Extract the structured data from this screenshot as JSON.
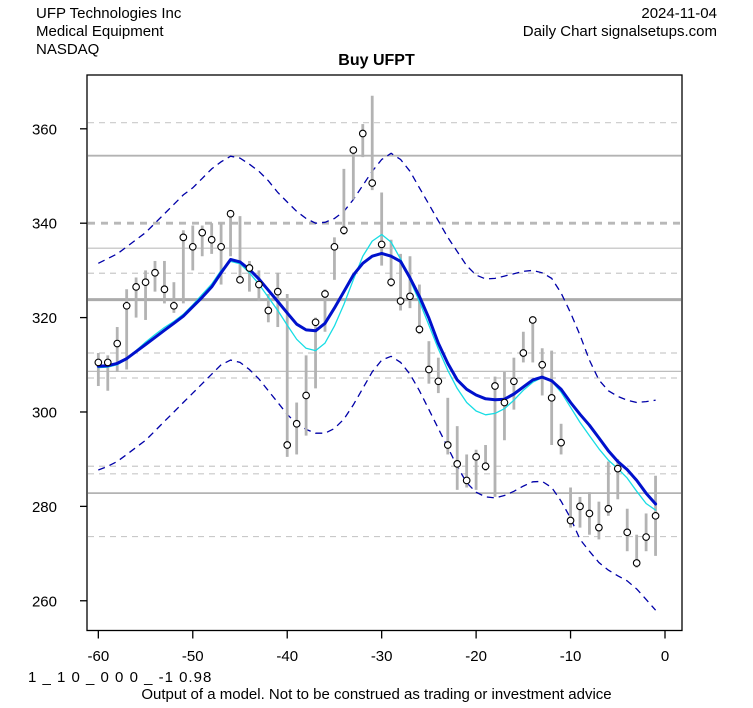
{
  "header": {
    "company": "UFP Technologies Inc",
    "industry": "Medical Equipment",
    "exchange": "NASDAQ",
    "date": "2024-11-04",
    "source": "Daily Chart signalsetups.com",
    "title": "Buy UFPT"
  },
  "footer": {
    "model_code": "1 _ 1 0 _ 0 0 0 _ -1 0.98",
    "disclaimer": "Output of a model. Not to be construed as trading or investment advice"
  },
  "chart_data": {
    "type": "bar",
    "subtype": "daily high-low price bars with open-circle close markers, two moving averages and dashed volatility bands",
    "title": "Buy UFPT",
    "xlabel": "",
    "ylabel": "",
    "x_ticks": [
      -60,
      -50,
      -40,
      -30,
      -20,
      -10,
      0
    ],
    "y_ticks": [
      260,
      280,
      300,
      320,
      340,
      360
    ],
    "xlim": [
      -61.2,
      1.8
    ],
    "ylim": [
      253.7,
      371.4
    ],
    "grid": "horizontal support/resistance lines only",
    "legend": "none",
    "days": [
      -60,
      -59,
      -58,
      -57,
      -56,
      -55,
      -54,
      -53,
      -52,
      -51,
      -50,
      -49,
      -48,
      -47,
      -46,
      -45,
      -44,
      -43,
      -42,
      -41,
      -40,
      -39,
      -38,
      -37,
      -36,
      -35,
      -34,
      -33,
      -32,
      -31,
      -30,
      -29,
      -28,
      -27,
      -26,
      -25,
      -24,
      -23,
      -22,
      -21,
      -20,
      -19,
      -18,
      -17,
      -16,
      -15,
      -14,
      -13,
      -12,
      -11,
      -10,
      -9,
      -8,
      -7,
      -6,
      -5,
      -4,
      -3,
      -2,
      -1
    ],
    "bars_low_high_close": [
      [
        305.5,
        312.5,
        310.5
      ],
      [
        304.5,
        312.0,
        310.5
      ],
      [
        308.5,
        318.0,
        314.5
      ],
      [
        309.0,
        326.0,
        322.5
      ],
      [
        320.0,
        328.5,
        326.5
      ],
      [
        319.5,
        330.0,
        327.5
      ],
      [
        325.5,
        332.0,
        329.5
      ],
      [
        323.0,
        332.0,
        326.0
      ],
      [
        321.0,
        327.5,
        322.5
      ],
      [
        323.0,
        338.5,
        337.0
      ],
      [
        330.0,
        339.5,
        335.0
      ],
      [
        333.0,
        339.5,
        338.0
      ],
      [
        333.5,
        340.0,
        336.5
      ],
      [
        327.0,
        340.0,
        335.0
      ],
      [
        333.0,
        342.5,
        342.0
      ],
      [
        328.0,
        341.5,
        328.0
      ],
      [
        325.5,
        332.0,
        330.5
      ],
      [
        323.5,
        330.0,
        327.0
      ],
      [
        319.0,
        325.0,
        321.5
      ],
      [
        318.0,
        329.5,
        325.5
      ],
      [
        290.5,
        325.0,
        293.0
      ],
      [
        291.0,
        302.0,
        297.5
      ],
      [
        295.0,
        312.0,
        303.5
      ],
      [
        305.0,
        320.0,
        319.0
      ],
      [
        317.0,
        326.0,
        325.0
      ],
      [
        328.0,
        337.0,
        335.0
      ],
      [
        337.5,
        351.5,
        338.5
      ],
      [
        345.0,
        356.0,
        355.5
      ],
      [
        354.0,
        361.0,
        359.0
      ],
      [
        347.0,
        367.0,
        348.5
      ],
      [
        331.0,
        346.5,
        335.5
      ],
      [
        326.5,
        336.5,
        327.5
      ],
      [
        321.5,
        333.5,
        323.5
      ],
      [
        322.0,
        333.0,
        324.5
      ],
      [
        316.5,
        327.0,
        317.5
      ],
      [
        306.0,
        315.0,
        309.0
      ],
      [
        304.0,
        311.5,
        306.5
      ],
      [
        291.0,
        303.0,
        293.0
      ],
      [
        283.5,
        297.0,
        289.0
      ],
      [
        284.0,
        291.0,
        285.5
      ],
      [
        283.5,
        292.0,
        290.5
      ],
      [
        287.5,
        293.0,
        288.5
      ],
      [
        282.0,
        307.5,
        305.5
      ],
      [
        294.0,
        308.5,
        302.0
      ],
      [
        300.5,
        311.5,
        306.5
      ],
      [
        310.5,
        317.0,
        312.5
      ],
      [
        310.5,
        320.0,
        319.5
      ],
      [
        303.5,
        313.5,
        310.0
      ],
      [
        293.0,
        313.0,
        303.0
      ],
      [
        291.0,
        297.5,
        293.5
      ],
      [
        275.5,
        284.0,
        277.0
      ],
      [
        275.5,
        282.0,
        280.0
      ],
      [
        274.0,
        283.0,
        278.5
      ],
      [
        273.0,
        281.0,
        275.5
      ],
      [
        278.0,
        289.5,
        279.5
      ],
      [
        281.5,
        290.0,
        288.0
      ],
      [
        270.5,
        279.5,
        274.5
      ],
      [
        267.0,
        274.0,
        268.0
      ],
      [
        270.5,
        278.5,
        273.5
      ],
      [
        269.5,
        286.5,
        278.0
      ]
    ],
    "series": [
      {
        "name": "signal-ma-thick-blue",
        "color": "#0011cc",
        "width": 3,
        "style": "solid",
        "values": [
          309.7,
          309.8,
          310.3,
          311.3,
          312.8,
          314.3,
          315.8,
          317.3,
          318.8,
          320.3,
          322.3,
          324.3,
          326.5,
          329.5,
          332.3,
          331.8,
          330.2,
          328.2,
          325.8,
          323.4,
          321.0,
          318.6,
          317.4,
          317.2,
          318.8,
          322.0,
          325.5,
          329.0,
          331.5,
          333.0,
          333.6,
          333.0,
          331.9,
          328.4,
          324.5,
          319.9,
          314.6,
          310.3,
          306.8,
          304.8,
          303.6,
          302.8,
          302.6,
          302.7,
          303.8,
          305.3,
          306.8,
          307.4,
          306.6,
          304.8,
          302.0,
          299.5,
          297.2,
          294.5,
          291.8,
          289.5,
          287.8,
          285.5,
          282.8,
          280.5
        ]
      },
      {
        "name": "fast-ma-cyan",
        "color": "#17dde4",
        "width": 1.3,
        "style": "solid",
        "values": [
          309.4,
          309.5,
          310.0,
          311.2,
          313.0,
          314.8,
          316.4,
          317.9,
          319.2,
          320.7,
          322.7,
          324.9,
          327.1,
          330.0,
          331.9,
          331.4,
          329.5,
          327.1,
          324.3,
          321.5,
          318.4,
          315.4,
          313.5,
          313.0,
          314.6,
          318.2,
          322.8,
          328.0,
          333.0,
          336.2,
          337.6,
          336.0,
          332.4,
          328.0,
          323.4,
          318.4,
          313.4,
          308.8,
          305.0,
          302.0,
          300.2,
          299.4,
          299.7,
          300.7,
          302.5,
          304.6,
          306.3,
          307.3,
          306.5,
          304.2,
          301.0,
          297.8,
          295.0,
          292.2,
          289.8,
          288.0,
          286.0,
          283.2,
          280.6,
          279.2
        ]
      },
      {
        "name": "upper-band-dashed",
        "color": "#0000a8",
        "width": 1.3,
        "style": "dashed",
        "values": [
          331.5,
          332.5,
          333.5,
          335.0,
          336.5,
          338.0,
          340.0,
          342.0,
          344.0,
          346.0,
          347.5,
          349.5,
          351.5,
          353.0,
          354.2,
          353.8,
          352.5,
          351.0,
          349.0,
          346.5,
          344.5,
          342.5,
          341.0,
          340.0,
          340.2,
          341.0,
          342.5,
          345.0,
          348.0,
          351.0,
          353.5,
          354.8,
          353.5,
          351.0,
          347.5,
          344.0,
          340.5,
          337.0,
          334.0,
          331.0,
          329.0,
          328.2,
          328.3,
          328.8,
          329.3,
          329.8,
          330.0,
          329.5,
          328.3,
          325.2,
          321.0,
          316.3,
          311.0,
          306.8,
          304.5,
          303.3,
          302.5,
          302.0,
          302.2,
          302.5
        ]
      },
      {
        "name": "lower-band-dashed",
        "color": "#0000a8",
        "width": 1.3,
        "style": "dashed",
        "values": [
          287.7,
          288.5,
          289.5,
          291.0,
          292.5,
          294.0,
          296.0,
          298.0,
          300.0,
          302.0,
          304.0,
          306.0,
          308.0,
          310.0,
          311.0,
          310.5,
          309.0,
          307.0,
          304.5,
          302.0,
          299.5,
          297.5,
          296.3,
          295.5,
          295.5,
          296.5,
          298.5,
          301.5,
          305.0,
          308.5,
          311.0,
          311.8,
          310.5,
          308.0,
          304.5,
          300.5,
          296.5,
          292.5,
          288.5,
          285.0,
          283.0,
          282.0,
          281.8,
          282.3,
          283.2,
          284.3,
          285.2,
          285.3,
          284.0,
          281.1,
          277.5,
          273.0,
          270.5,
          268.1,
          266.5,
          265.3,
          264.2,
          262.5,
          260.3,
          258.0
        ]
      }
    ],
    "gridlines": [
      {
        "price": 361.3,
        "style": "dashed",
        "width": 1.2,
        "color": "#c9c9c9",
        "dash": "6 5"
      },
      {
        "price": 354.3,
        "style": "solid",
        "width": 1.8,
        "color": "#b3b3b3"
      },
      {
        "price": 340.0,
        "style": "dashed",
        "width": 2.8,
        "color": "#b8b8b8",
        "dash": "7 6"
      },
      {
        "price": 334.7,
        "style": "solid",
        "width": 1.2,
        "color": "#bdbdbd"
      },
      {
        "price": 329.4,
        "style": "dashed",
        "width": 1.2,
        "color": "#c9c9c9",
        "dash": "6 5"
      },
      {
        "price": 323.8,
        "style": "solid",
        "width": 3.0,
        "color": "#ababab"
      },
      {
        "price": 312.5,
        "style": "dashed",
        "width": 1.2,
        "color": "#c9c9c9",
        "dash": "6 5"
      },
      {
        "price": 308.6,
        "style": "solid",
        "width": 1.2,
        "color": "#bdbdbd"
      },
      {
        "price": 307.2,
        "style": "dashed",
        "width": 1.2,
        "color": "#c9c9c9",
        "dash": "6 5"
      },
      {
        "price": 288.5,
        "style": "dashed",
        "width": 1.2,
        "color": "#c9c9c9",
        "dash": "6 5"
      },
      {
        "price": 286.9,
        "style": "dashed",
        "width": 1.2,
        "color": "#c9c9c9",
        "dash": "6 5"
      },
      {
        "price": 282.8,
        "style": "solid",
        "width": 1.8,
        "color": "#b3b3b3"
      },
      {
        "price": 273.6,
        "style": "dashed",
        "width": 1.2,
        "color": "#c9c9c9",
        "dash": "6 5"
      }
    ],
    "colors": {
      "bar": "#b3b3b3",
      "close_marker_fill": "#ffffff",
      "close_marker_stroke": "#000000",
      "frame": "#000000"
    }
  }
}
